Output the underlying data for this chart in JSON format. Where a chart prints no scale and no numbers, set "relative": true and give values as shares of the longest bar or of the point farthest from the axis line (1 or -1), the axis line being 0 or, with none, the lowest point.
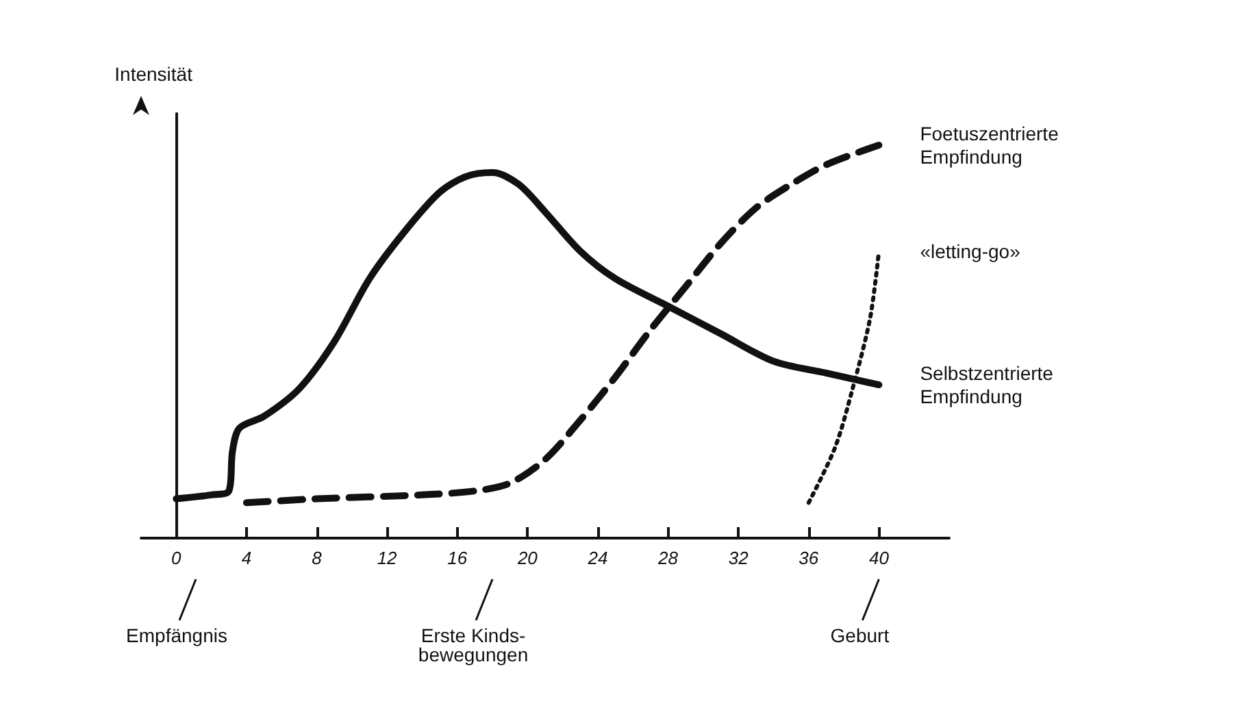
{
  "chart_data": {
    "type": "line",
    "relative": true,
    "ylabel": "Intensität",
    "xlim": [
      -2,
      44
    ],
    "xticks": [
      0,
      4,
      8,
      12,
      16,
      20,
      24,
      28,
      32,
      36,
      40
    ],
    "marker": "none",
    "series": [
      {
        "name": "Foetuszentrierte Empfindung",
        "color": "#111111",
        "line_style": "dashed",
        "x": [
          4,
          8,
          14,
          17,
          19,
          21,
          23,
          25,
          27,
          29,
          31,
          33,
          35,
          37,
          40
        ],
        "values": [
          0.09,
          0.1,
          0.11,
          0.12,
          0.14,
          0.2,
          0.3,
          0.41,
          0.53,
          0.64,
          0.75,
          0.84,
          0.9,
          0.95,
          1
        ]
      },
      {
        "name": "«letting-go»",
        "color": "#111111",
        "line_style": "dotted",
        "x": [
          36,
          37.5,
          38.5,
          39.5,
          40
        ],
        "values": [
          0.09,
          0.23,
          0.38,
          0.56,
          0.73
        ]
      },
      {
        "name": "Selbstzentrierte Empfindung",
        "color": "#111111",
        "line_style": "solid",
        "x": [
          0,
          2,
          3,
          3.2,
          3.6,
          5,
          7,
          9,
          11,
          13,
          15,
          16.5,
          18,
          19.5,
          21,
          23,
          25,
          28,
          31,
          34,
          37,
          40
        ],
        "values": [
          0.1,
          0.11,
          0.12,
          0.22,
          0.28,
          0.31,
          0.38,
          0.5,
          0.66,
          0.78,
          0.88,
          0.92,
          0.93,
          0.9,
          0.83,
          0.73,
          0.66,
          0.59,
          0.52,
          0.45,
          0.42,
          0.39
        ]
      }
    ],
    "annotations": [
      "Empfängnis",
      {
        "text": "Erste Kinds-\nbewegungen",
        "x": 18
      },
      {
        "text": "Geburt",
        "x": 40
      }
    ]
  }
}
